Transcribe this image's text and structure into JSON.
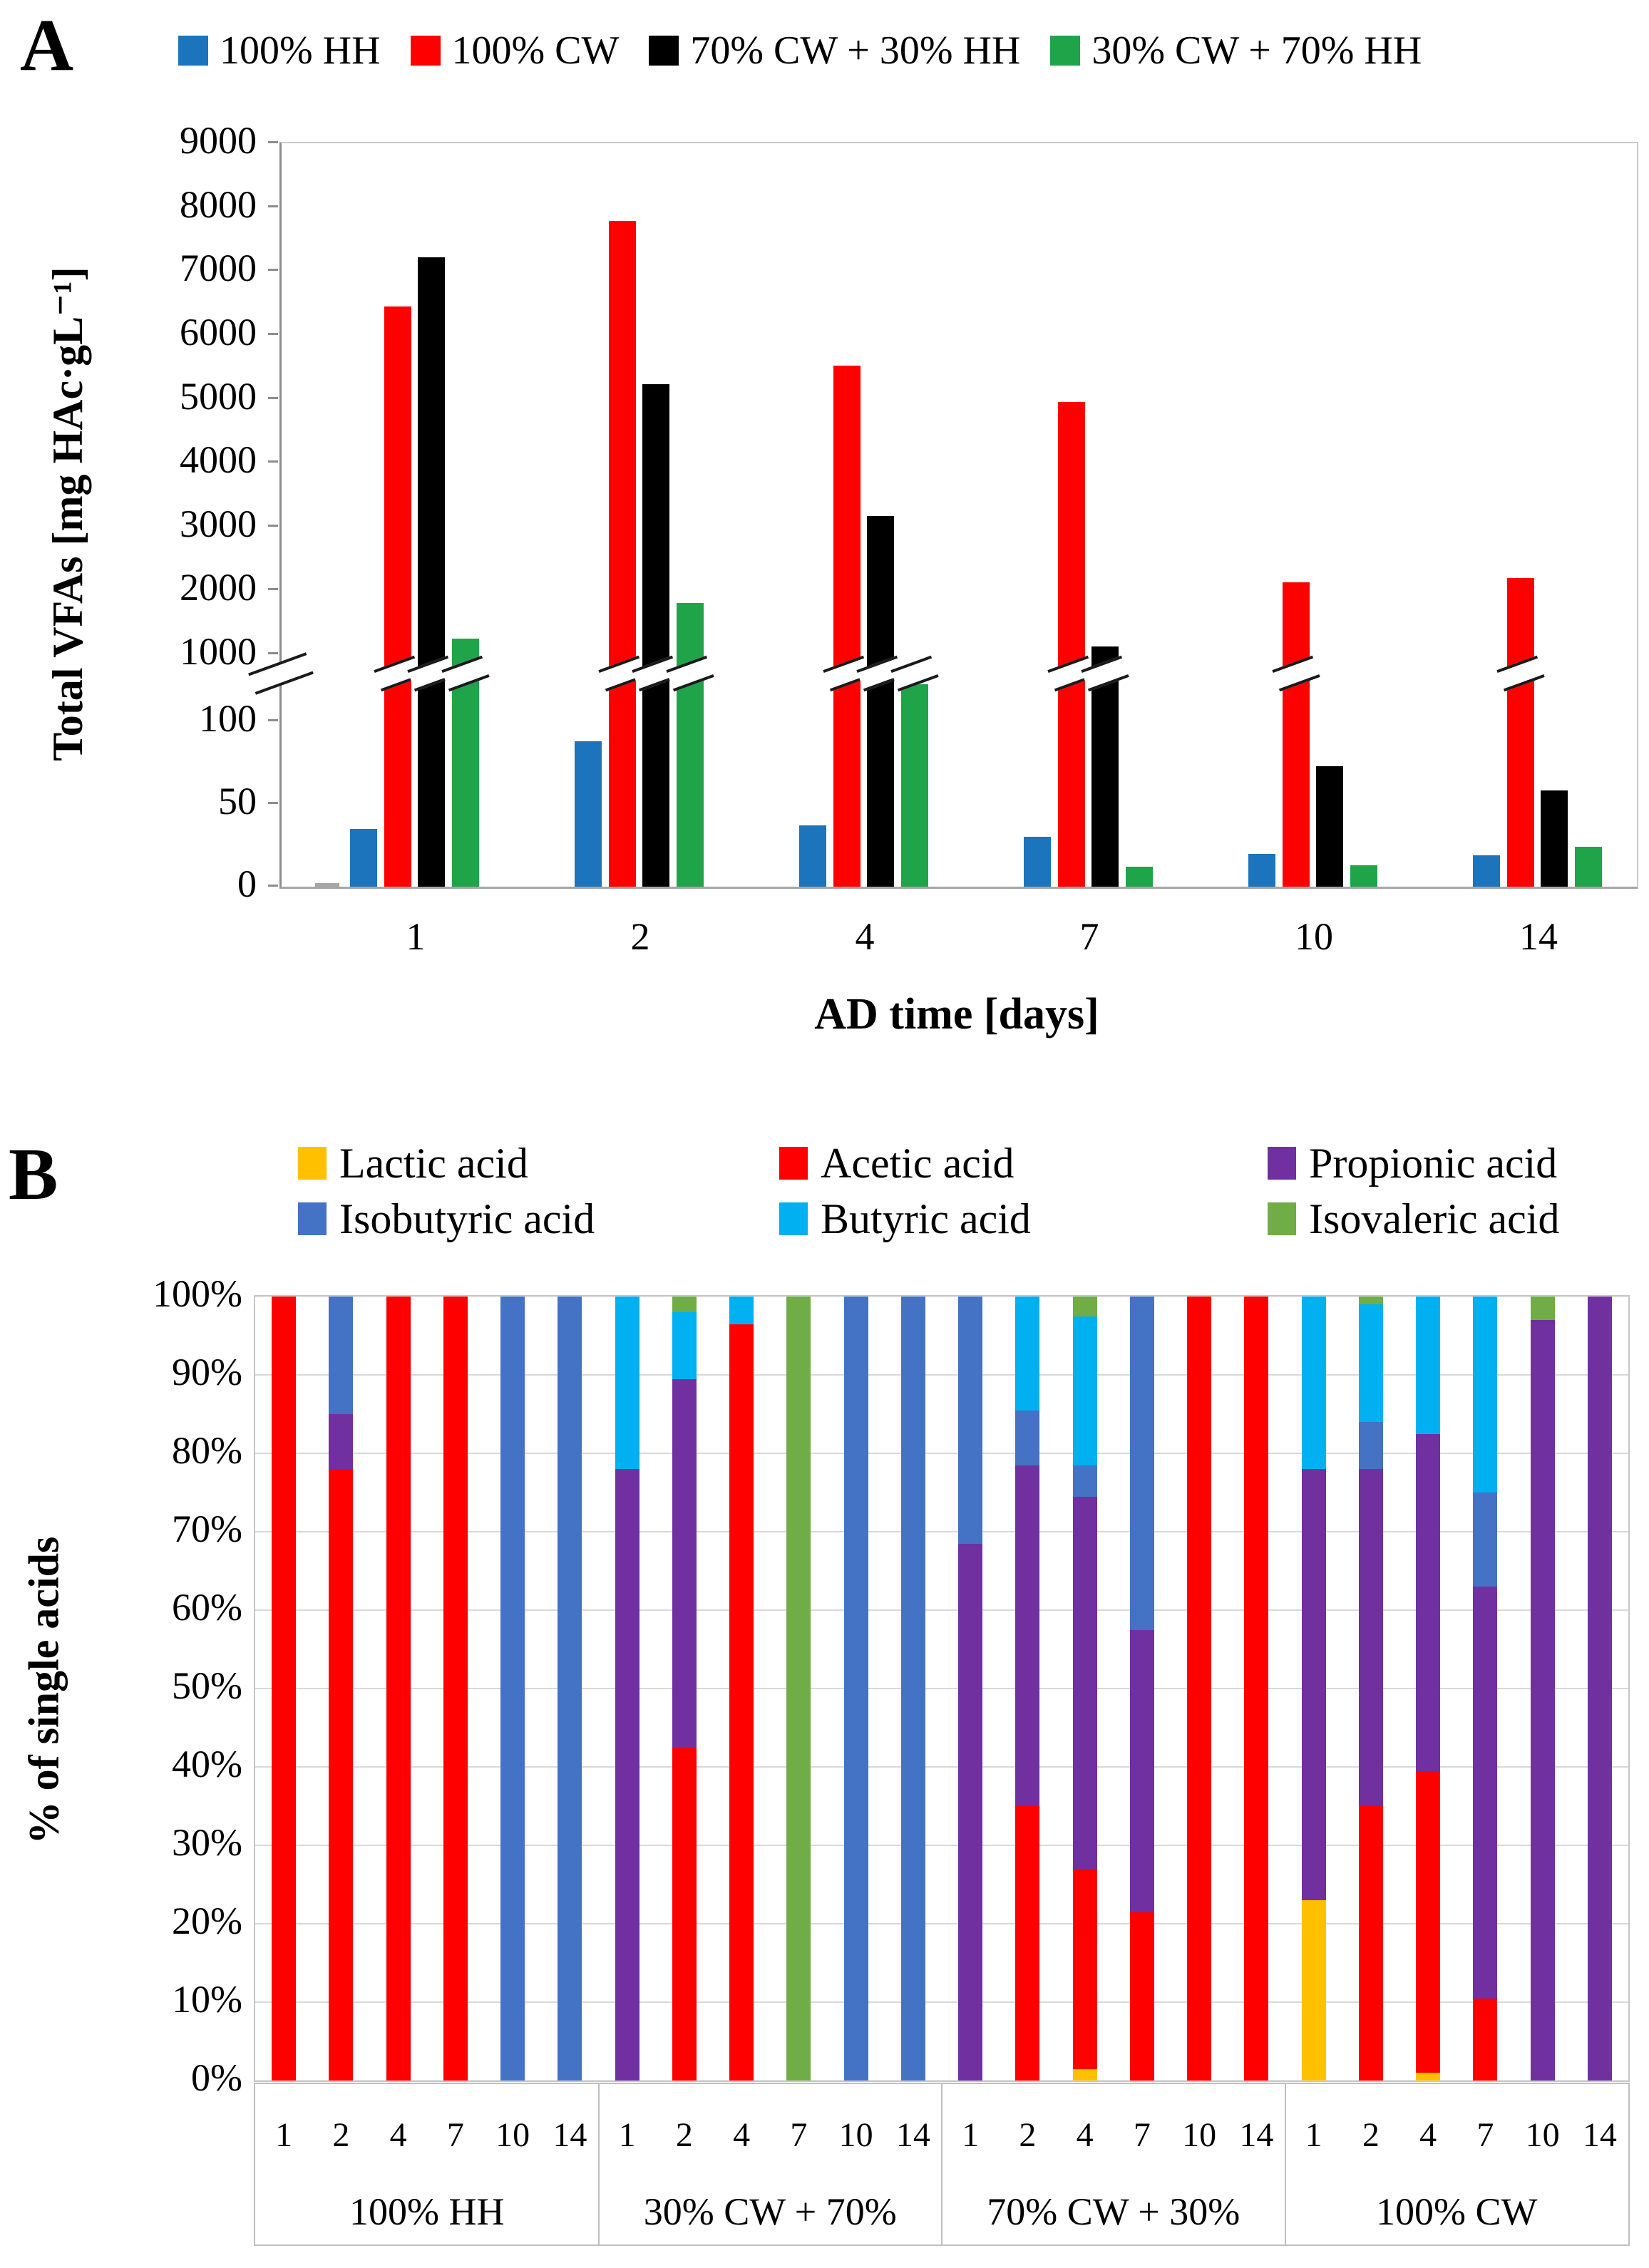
{
  "panel_a": {
    "label": "A",
    "legend": [
      {
        "label": "100% HH",
        "color": "#1b74bc"
      },
      {
        "label": "100% CW",
        "color": "#fe0000"
      },
      {
        "label": "70% CW + 30% HH",
        "color": "#000000"
      },
      {
        "label": "30% CW + 70% HH",
        "color": "#1fa44a"
      }
    ],
    "y_axis": {
      "title": "Total VFAs [mg HAc·gL⁻¹]",
      "upper_ticks": [
        9000,
        8000,
        7000,
        6000,
        5000,
        4000,
        3000,
        2000,
        1000
      ],
      "lower_ticks": [
        100,
        50,
        0
      ]
    },
    "x_axis": {
      "title": "AD time [days]",
      "categories": [
        "1",
        "2",
        "4",
        "7",
        "10",
        "14"
      ]
    }
  },
  "panel_b": {
    "label": "B",
    "legend": [
      {
        "label": "Lactic acid",
        "color": "#ffc000"
      },
      {
        "label": "Acetic acid",
        "color": "#fe0000"
      },
      {
        "label": "Propionic acid",
        "color": "#7030a0"
      },
      {
        "label": "Isobutyric acid",
        "color": "#4472c4"
      },
      {
        "label": "Butyric acid",
        "color": "#00b0f0"
      },
      {
        "label": "Isovaleric acid",
        "color": "#70ad47"
      }
    ],
    "y_axis": {
      "title": "% of single acids",
      "ticks": [
        "100%",
        "90%",
        "80%",
        "70%",
        "60%",
        "50%",
        "40%",
        "30%",
        "20%",
        "10%",
        "0%"
      ]
    },
    "x_axis": {
      "days": [
        "1",
        "2",
        "4",
        "7",
        "10",
        "14"
      ],
      "group_labels": [
        "100% HH",
        "30% CW + 70%",
        "70% CW + 30%",
        "100% CW"
      ]
    }
  },
  "chart_data": [
    {
      "id": "A",
      "type": "bar",
      "title": "",
      "xlabel": "AD time [days]",
      "ylabel": "Total VFAs [mg HAc·gL⁻¹]",
      "broken_y_axis": {
        "lower_range": [
          0,
          100
        ],
        "upper_range": [
          1000,
          9000
        ]
      },
      "categories": [
        1,
        2,
        4,
        7,
        10,
        14
      ],
      "series": [
        {
          "name": "100% HH",
          "color": "#1b74bc",
          "values": [
            35,
            88,
            37,
            30,
            20,
            19
          ]
        },
        {
          "name": "100% CW",
          "color": "#fe0000",
          "values": [
            6450,
            7780,
            5520,
            4950,
            2130,
            2190
          ]
        },
        {
          "name": "70% CW + 30% HH",
          "color": "#000000",
          "values": [
            7220,
            5230,
            3170,
            1120,
            73,
            58
          ]
        },
        {
          "name": "30% CW + 70% HH",
          "color": "#1fa44a",
          "values": [
            1250,
            1800,
            600,
            12,
            13,
            24
          ]
        }
      ],
      "unlabeled_gray_bar": {
        "category": 1,
        "value": 2,
        "color": "#a6a6a6"
      }
    },
    {
      "id": "B",
      "type": "stacked-bar",
      "unit": "percent",
      "ylabel": "% of single acids",
      "ylim": [
        0,
        100
      ],
      "grid": true,
      "acid_colors": {
        "Lactic acid": "#ffc000",
        "Acetic acid": "#fe0000",
        "Propionic acid": "#7030a0",
        "Isobutyric acid": "#4472c4",
        "Butyric acid": "#00b0f0",
        "Isovaleric acid": "#70ad47"
      },
      "groups": [
        {
          "label": "100% HH",
          "bars": [
            {
              "day": 1,
              "segments": {
                "Acetic acid": 100
              }
            },
            {
              "day": 2,
              "segments": {
                "Acetic acid": 78,
                "Propionic acid": 7,
                "Isobutyric acid": 15
              }
            },
            {
              "day": 4,
              "segments": {
                "Acetic acid": 100
              }
            },
            {
              "day": 7,
              "segments": {
                "Acetic acid": 100
              }
            },
            {
              "day": 10,
              "segments": {
                "Isobutyric acid": 100
              }
            },
            {
              "day": 14,
              "segments": {
                "Isobutyric acid": 100
              }
            }
          ]
        },
        {
          "label": "30% CW + 70%",
          "bars": [
            {
              "day": 1,
              "segments": {
                "Propionic acid": 78,
                "Butyric acid": 22
              }
            },
            {
              "day": 2,
              "segments": {
                "Acetic acid": 42.5,
                "Propionic acid": 47,
                "Butyric acid": 8.5,
                "Isovaleric acid": 2
              }
            },
            {
              "day": 4,
              "segments": {
                "Acetic acid": 96.5,
                "Butyric acid": 3.5
              }
            },
            {
              "day": 7,
              "segments": {
                "Isovaleric acid": 100
              }
            },
            {
              "day": 10,
              "segments": {
                "Isobutyric acid": 100
              }
            },
            {
              "day": 14,
              "segments": {
                "Isobutyric acid": 100
              }
            }
          ]
        },
        {
          "label": "70% CW + 30%",
          "bars": [
            {
              "day": 1,
              "segments": {
                "Propionic acid": 68.5,
                "Isobutyric acid": 31.5
              }
            },
            {
              "day": 2,
              "segments": {
                "Acetic acid": 35,
                "Propionic acid": 43.5,
                "Isobutyric acid": 7,
                "Butyric acid": 14.5
              }
            },
            {
              "day": 4,
              "segments": {
                "Lactic acid": 1.5,
                "Acetic acid": 25.5,
                "Propionic acid": 47.5,
                "Isobutyric acid": 4,
                "Butyric acid": 19,
                "Isovaleric acid": 2.5
              }
            },
            {
              "day": 7,
              "segments": {
                "Acetic acid": 21.5,
                "Propionic acid": 36,
                "Isobutyric acid": 42.5
              }
            },
            {
              "day": 10,
              "segments": {
                "Acetic acid": 100
              }
            },
            {
              "day": 14,
              "segments": {
                "Acetic acid": 100
              }
            }
          ]
        },
        {
          "label": "100% CW",
          "bars": [
            {
              "day": 1,
              "segments": {
                "Lactic acid": 23,
                "Propionic acid": 55,
                "Butyric acid": 22
              }
            },
            {
              "day": 2,
              "segments": {
                "Acetic acid": 35,
                "Propionic acid": 43,
                "Isobutyric acid": 6,
                "Butyric acid": 15,
                "Isovaleric acid": 1
              }
            },
            {
              "day": 4,
              "segments": {
                "Lactic acid": 1,
                "Acetic acid": 38.5,
                "Propionic acid": 43,
                "Butyric acid": 17.5
              }
            },
            {
              "day": 7,
              "segments": {
                "Acetic acid": 10.5,
                "Propionic acid": 52.5,
                "Isobutyric acid": 12,
                "Butyric acid": 25
              }
            },
            {
              "day": 10,
              "segments": {
                "Propionic acid": 97,
                "Isovaleric acid": 3
              }
            },
            {
              "day": 14,
              "segments": {
                "Propionic acid": 100
              }
            }
          ]
        }
      ]
    }
  ]
}
